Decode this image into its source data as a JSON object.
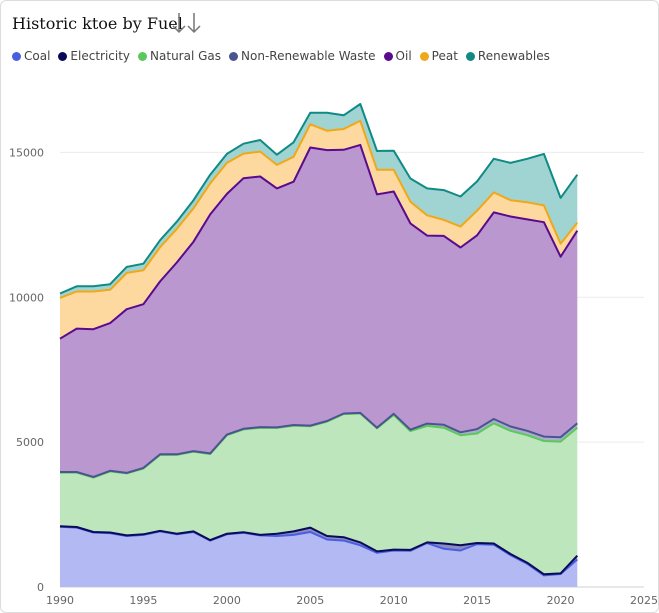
{
  "title": "Historic ktoe by Fuel",
  "sort_icon": "sort-down-arrows-icon",
  "chart_data": {
    "type": "area",
    "stacked": true,
    "x": [
      1990,
      1991,
      1992,
      1993,
      1994,
      1995,
      1996,
      1997,
      1998,
      1999,
      2000,
      2001,
      2002,
      2003,
      2004,
      2005,
      2006,
      2007,
      2008,
      2009,
      2010,
      2011,
      2012,
      2013,
      2014,
      2015,
      2016,
      2017,
      2018,
      2019,
      2020,
      2021
    ],
    "xlim": [
      1990,
      2025
    ],
    "ylim": [
      0,
      17500
    ],
    "xticks": [
      1990,
      1995,
      2000,
      2005,
      2010,
      2015,
      2020,
      2025
    ],
    "yticks": [
      0,
      5000,
      10000,
      15000
    ],
    "grid": true,
    "legend_position": "top-left",
    "series": [
      {
        "name": "Coal",
        "color": "#4a5fe0",
        "fill": "#b3b9f2",
        "values": [
          2080,
          2050,
          1880,
          1860,
          1760,
          1800,
          1920,
          1820,
          1900,
          1600,
          1820,
          1870,
          1780,
          1760,
          1800,
          1900,
          1640,
          1600,
          1440,
          1180,
          1260,
          1250,
          1520,
          1320,
          1260,
          1480,
          1460,
          1100,
          800,
          400,
          450,
          950
        ]
      },
      {
        "name": "Electricity",
        "color": "#0a0a5a",
        "fill": "#8c8cc0",
        "values": [
          20,
          20,
          20,
          20,
          20,
          20,
          20,
          20,
          20,
          20,
          20,
          20,
          20,
          80,
          120,
          150,
          120,
          120,
          100,
          50,
          30,
          30,
          20,
          180,
          180,
          40,
          40,
          40,
          40,
          40,
          20,
          130
        ]
      },
      {
        "name": "Natural Gas",
        "color": "#5cc85c",
        "fill": "#bde6bd",
        "values": [
          1850,
          1880,
          1880,
          2110,
          2140,
          2270,
          2620,
          2720,
          2750,
          2970,
          3400,
          3550,
          3700,
          3650,
          3650,
          3500,
          3950,
          4250,
          4450,
          4250,
          4650,
          4100,
          4020,
          4000,
          3800,
          3780,
          4150,
          4250,
          4400,
          4600,
          4550,
          4420
        ]
      },
      {
        "name": "Non-Renewable Waste",
        "color": "#4a5590",
        "fill": "#a8aecc",
        "values": [
          20,
          20,
          20,
          20,
          20,
          20,
          20,
          20,
          20,
          20,
          20,
          20,
          20,
          20,
          20,
          20,
          20,
          20,
          20,
          20,
          40,
          50,
          80,
          100,
          100,
          150,
          150,
          150,
          150,
          150,
          150,
          150
        ]
      },
      {
        "name": "Oil",
        "color": "#5a0a8c",
        "fill": "#bb97d0",
        "values": [
          4600,
          4950,
          5100,
          5100,
          5650,
          5650,
          5970,
          6620,
          7230,
          8250,
          8310,
          8650,
          8650,
          8250,
          8400,
          9600,
          9350,
          9100,
          9250,
          8050,
          7670,
          7120,
          6490,
          6520,
          6380,
          6690,
          7130,
          7250,
          7300,
          7400,
          6230,
          6650
        ]
      },
      {
        "name": "Peat",
        "color": "#f0a818",
        "fill": "#fdd9a0",
        "values": [
          1410,
          1280,
          1300,
          1150,
          1250,
          1170,
          1180,
          1160,
          1150,
          1070,
          1070,
          850,
          860,
          810,
          860,
          800,
          670,
          720,
          830,
          850,
          750,
          750,
          700,
          550,
          720,
          850,
          690,
          560,
          590,
          580,
          450,
          270
        ]
      },
      {
        "name": "Renewables",
        "color": "#108a84",
        "fill": "#9fd4d3",
        "values": [
          150,
          180,
          180,
          190,
          210,
          230,
          240,
          250,
          280,
          300,
          310,
          340,
          400,
          350,
          500,
          400,
          620,
          470,
          580,
          650,
          660,
          800,
          930,
          1030,
          1040,
          1010,
          1160,
          1290,
          1500,
          1780,
          1580,
          1660
        ]
      }
    ]
  }
}
